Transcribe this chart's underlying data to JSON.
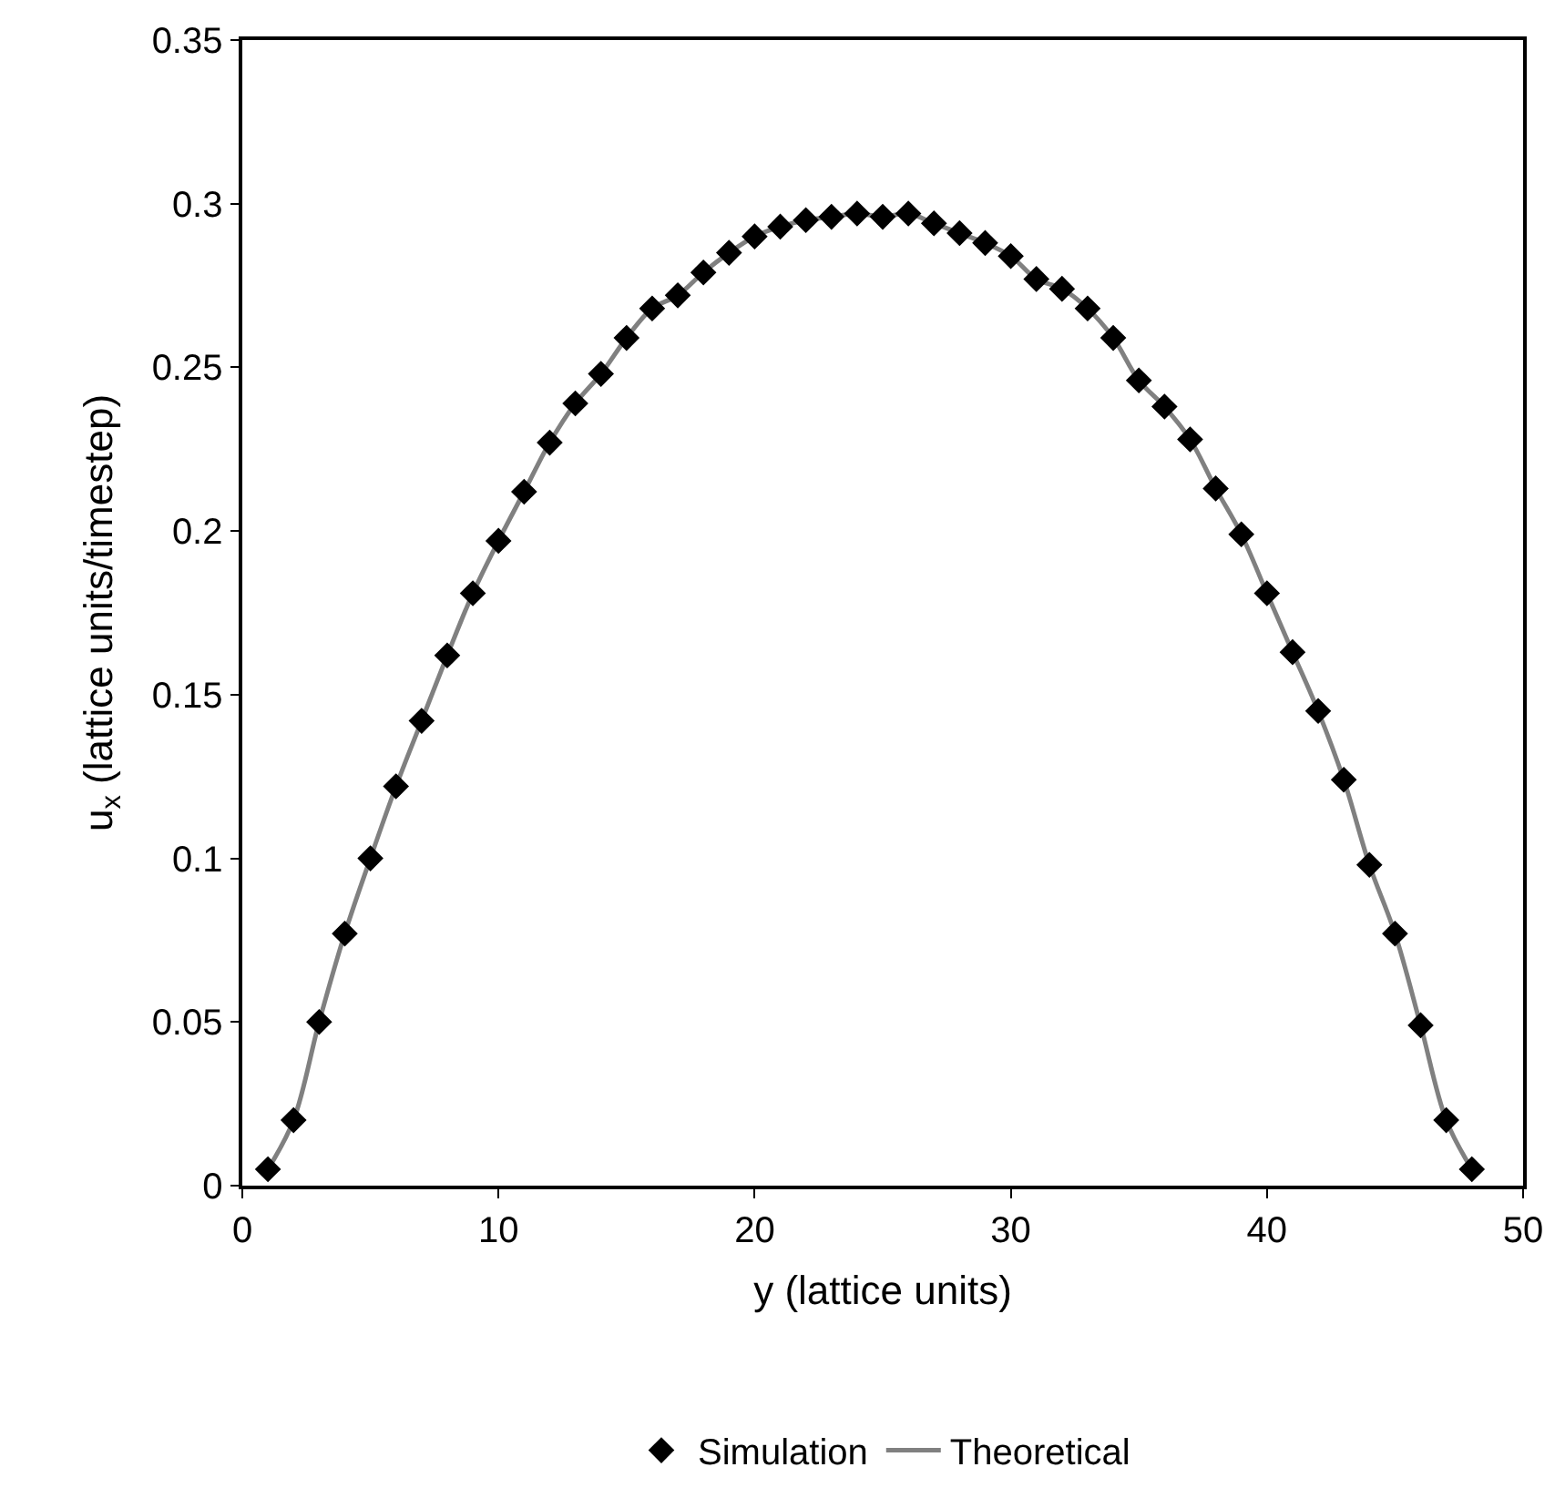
{
  "chart_data": {
    "type": "scatter",
    "xlabel": "y (lattice units)",
    "ylabel": "u$_{x}$ (lattice units/timestep)",
    "x": [
      1,
      2,
      3,
      4,
      5,
      6,
      7,
      8,
      9,
      10,
      11,
      12,
      13,
      14,
      15,
      16,
      17,
      18,
      19,
      20,
      21,
      22,
      23,
      24,
      25,
      26,
      27,
      28,
      29,
      30,
      31,
      32,
      33,
      34,
      35,
      36,
      37,
      38,
      39,
      40,
      41,
      42,
      43,
      44,
      45,
      46,
      47,
      48
    ],
    "series": [
      {
        "name": "Simulation",
        "marker": "diamond",
        "color": "#000000",
        "values": [
          0.005,
          0.02,
          0.05,
          0.077,
          0.1,
          0.122,
          0.142,
          0.162,
          0.181,
          0.197,
          0.212,
          0.227,
          0.239,
          0.248,
          0.259,
          0.268,
          0.272,
          0.279,
          0.285,
          0.29,
          0.293,
          0.295,
          0.296,
          0.297,
          0.296,
          0.297,
          0.294,
          0.291,
          0.288,
          0.284,
          0.277,
          0.274,
          0.268,
          0.259,
          0.246,
          0.238,
          0.228,
          0.213,
          0.199,
          0.181,
          0.163,
          0.145,
          0.124,
          0.098,
          0.077,
          0.049,
          0.02,
          0.005
        ]
      },
      {
        "name": "Theoretical",
        "type": "line",
        "marker": "none",
        "line_style": "solid",
        "color": "#808080",
        "values": [
          0.005,
          0.02,
          0.05,
          0.077,
          0.1,
          0.122,
          0.142,
          0.162,
          0.181,
          0.197,
          0.212,
          0.227,
          0.239,
          0.248,
          0.259,
          0.268,
          0.272,
          0.279,
          0.285,
          0.29,
          0.293,
          0.295,
          0.296,
          0.297,
          0.296,
          0.297,
          0.294,
          0.291,
          0.288,
          0.284,
          0.277,
          0.274,
          0.268,
          0.259,
          0.246,
          0.238,
          0.228,
          0.213,
          0.199,
          0.181,
          0.163,
          0.145,
          0.124,
          0.098,
          0.077,
          0.049,
          0.02,
          0.005
        ]
      }
    ],
    "xlim": [
      0,
      50
    ],
    "xticks": [
      0,
      10,
      20,
      30,
      40,
      50
    ],
    "ylim": [
      0,
      0.35
    ],
    "yticks": [
      0,
      0.05,
      0.1,
      0.15,
      0.2,
      0.25,
      0.3,
      0.35
    ],
    "legend": "bottom"
  }
}
